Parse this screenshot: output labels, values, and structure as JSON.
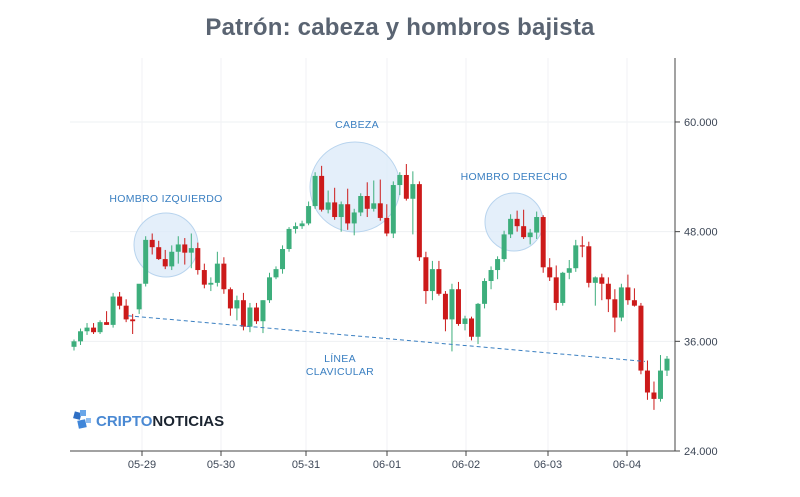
{
  "chart_data": {
    "type": "candlestick",
    "title": "Patrón: cabeza y hombros bajista",
    "x_tick_labels": [
      "05-29",
      "05-30",
      "05-31",
      "06-01",
      "06-02",
      "06-03",
      "06-04"
    ],
    "y_ticks": [
      24000,
      36000,
      48000,
      60000
    ],
    "y_tick_labels": [
      "24.000",
      "36.000",
      "48.000",
      "60.000"
    ],
    "ylim": [
      24000,
      67000
    ],
    "grid": true,
    "colors": {
      "up": "#3dae7c",
      "down": "#cc1a1a",
      "annotation": "#3a7fc1",
      "circle_fill": "#dbeaf8",
      "axis": "#444444"
    },
    "candles_ohlc": [
      [
        35400,
        36200,
        35000,
        36000
      ],
      [
        36000,
        37400,
        35600,
        37100
      ],
      [
        37100,
        38000,
        36700,
        37500
      ],
      [
        37500,
        38000,
        36800,
        37000
      ],
      [
        37000,
        38300,
        36800,
        38100
      ],
      [
        38100,
        39300,
        37800,
        37800
      ],
      [
        37800,
        41300,
        37500,
        40900
      ],
      [
        40900,
        41400,
        39500,
        39900
      ],
      [
        39900,
        40600,
        38100,
        38400
      ],
      [
        38400,
        39000,
        36800,
        38200
      ],
      [
        39500,
        41200,
        39000,
        42300
      ],
      [
        42300,
        47500,
        42000,
        47100
      ],
      [
        47100,
        47800,
        45500,
        46300
      ],
      [
        46300,
        47000,
        44900,
        45000
      ],
      [
        45000,
        46000,
        43900,
        44200
      ],
      [
        44200,
        46500,
        43800,
        45800
      ],
      [
        45800,
        47500,
        44500,
        46600
      ],
      [
        46600,
        47300,
        44400,
        45700
      ],
      [
        45700,
        47800,
        44000,
        46200
      ],
      [
        46200,
        46800,
        43300,
        43800
      ],
      [
        43800,
        44500,
        41800,
        42200
      ],
      [
        42200,
        43000,
        41500,
        42400
      ],
      [
        42400,
        45800,
        42000,
        44500
      ],
      [
        44500,
        45200,
        41200,
        41700
      ],
      [
        41700,
        41900,
        38800,
        39600
      ],
      [
        39600,
        41000,
        38300,
        40500
      ],
      [
        40500,
        41300,
        37200,
        37600
      ],
      [
        37600,
        40200,
        37000,
        39700
      ],
      [
        39700,
        40200,
        37900,
        38200
      ],
      [
        38200,
        40500,
        36900,
        40500
      ],
      [
        40500,
        43500,
        40200,
        43000
      ],
      [
        43000,
        44200,
        42800,
        43900
      ],
      [
        43900,
        46500,
        43400,
        46100
      ],
      [
        46100,
        48500,
        45800,
        48300
      ],
      [
        48300,
        49000,
        47800,
        48600
      ],
      [
        48600,
        49200,
        48300,
        48900
      ],
      [
        48900,
        51300,
        48700,
        50800
      ],
      [
        50800,
        54500,
        50500,
        54100
      ],
      [
        54100,
        55200,
        50200,
        50400
      ],
      [
        50400,
        52500,
        50000,
        51200
      ],
      [
        51200,
        52800,
        49300,
        49600
      ],
      [
        49600,
        51300,
        48000,
        51000
      ],
      [
        51000,
        52700,
        48200,
        48900
      ],
      [
        48900,
        50500,
        47600,
        50100
      ],
      [
        50100,
        52200,
        49700,
        51900
      ],
      [
        51900,
        53400,
        49600,
        50500
      ],
      [
        50500,
        53600,
        50200,
        51100
      ],
      [
        51100,
        53700,
        49200,
        49500
      ],
      [
        49500,
        51000,
        47500,
        47800
      ],
      [
        47800,
        53500,
        47300,
        53100
      ],
      [
        53100,
        54500,
        52000,
        54200
      ],
      [
        54200,
        55400,
        51400,
        51600
      ],
      [
        51600,
        54600,
        47700,
        53200
      ],
      [
        53200,
        53500,
        44800,
        45200
      ],
      [
        45200,
        45800,
        40100,
        41500
      ],
      [
        41500,
        44800,
        40500,
        43900
      ],
      [
        43900,
        44800,
        41000,
        41200
      ],
      [
        41200,
        41500,
        37100,
        38400
      ],
      [
        38400,
        42300,
        34900,
        41700
      ],
      [
        41700,
        42500,
        37700,
        37900
      ],
      [
        37900,
        38800,
        37200,
        38500
      ],
      [
        38500,
        38700,
        36100,
        36500
      ],
      [
        36500,
        40200,
        35700,
        40100
      ],
      [
        40100,
        42900,
        39600,
        42600
      ],
      [
        42600,
        44200,
        41700,
        43800
      ],
      [
        43800,
        45300,
        42800,
        45000
      ],
      [
        45000,
        48100,
        44700,
        47700
      ],
      [
        47700,
        49900,
        47300,
        49400
      ],
      [
        49400,
        50300,
        48000,
        48600
      ],
      [
        48600,
        50400,
        47200,
        47400
      ],
      [
        47400,
        48300,
        46600,
        47900
      ],
      [
        47900,
        50200,
        47200,
        49600
      ],
      [
        49600,
        49800,
        43500,
        44100
      ],
      [
        44100,
        45100,
        42600,
        43000
      ],
      [
        43000,
        44300,
        39400,
        40200
      ],
      [
        40200,
        43600,
        39900,
        43500
      ],
      [
        43500,
        44900,
        42800,
        44000
      ],
      [
        44000,
        47100,
        43600,
        46500
      ],
      [
        46500,
        47500,
        45200,
        46400
      ],
      [
        46400,
        46900,
        41900,
        42400
      ],
      [
        42400,
        43100,
        39900,
        43000
      ],
      [
        43000,
        43400,
        40500,
        42300
      ],
      [
        42300,
        43000,
        39200,
        40600
      ],
      [
        40600,
        41700,
        37000,
        38600
      ],
      [
        38600,
        42300,
        38200,
        41900
      ],
      [
        41900,
        43300,
        40000,
        40500
      ],
      [
        40500,
        41800,
        39800,
        39900
      ],
      [
        39900,
        40200,
        32400,
        32800
      ],
      [
        32800,
        33900,
        29600,
        30400
      ],
      [
        30400,
        31600,
        28500,
        29700
      ],
      [
        29700,
        34500,
        29400,
        32800
      ],
      [
        32800,
        34400,
        32200,
        34100
      ]
    ],
    "annotations": [
      {
        "label": "HOMBRO IZQUIERDO",
        "circle_center": [
          45000,
          46000
        ],
        "circle_radius_value": 3300
      },
      {
        "label": "CABEZA",
        "circle_center": [
          38000,
          52500
        ],
        "circle_radius_value": 6500
      },
      {
        "label": "HOMBRO DERECHO",
        "circle_center": [
          36800,
          49000
        ],
        "circle_radius_value": 3100
      }
    ],
    "neckline": {
      "label_line1": "LÍNEA",
      "label_line2": "CLAVICULAR",
      "start_value": 38800,
      "end_value": 33800
    }
  },
  "logo": {
    "text_prefix": "CRIPTO",
    "text_suffix": "NOTICIAS"
  }
}
